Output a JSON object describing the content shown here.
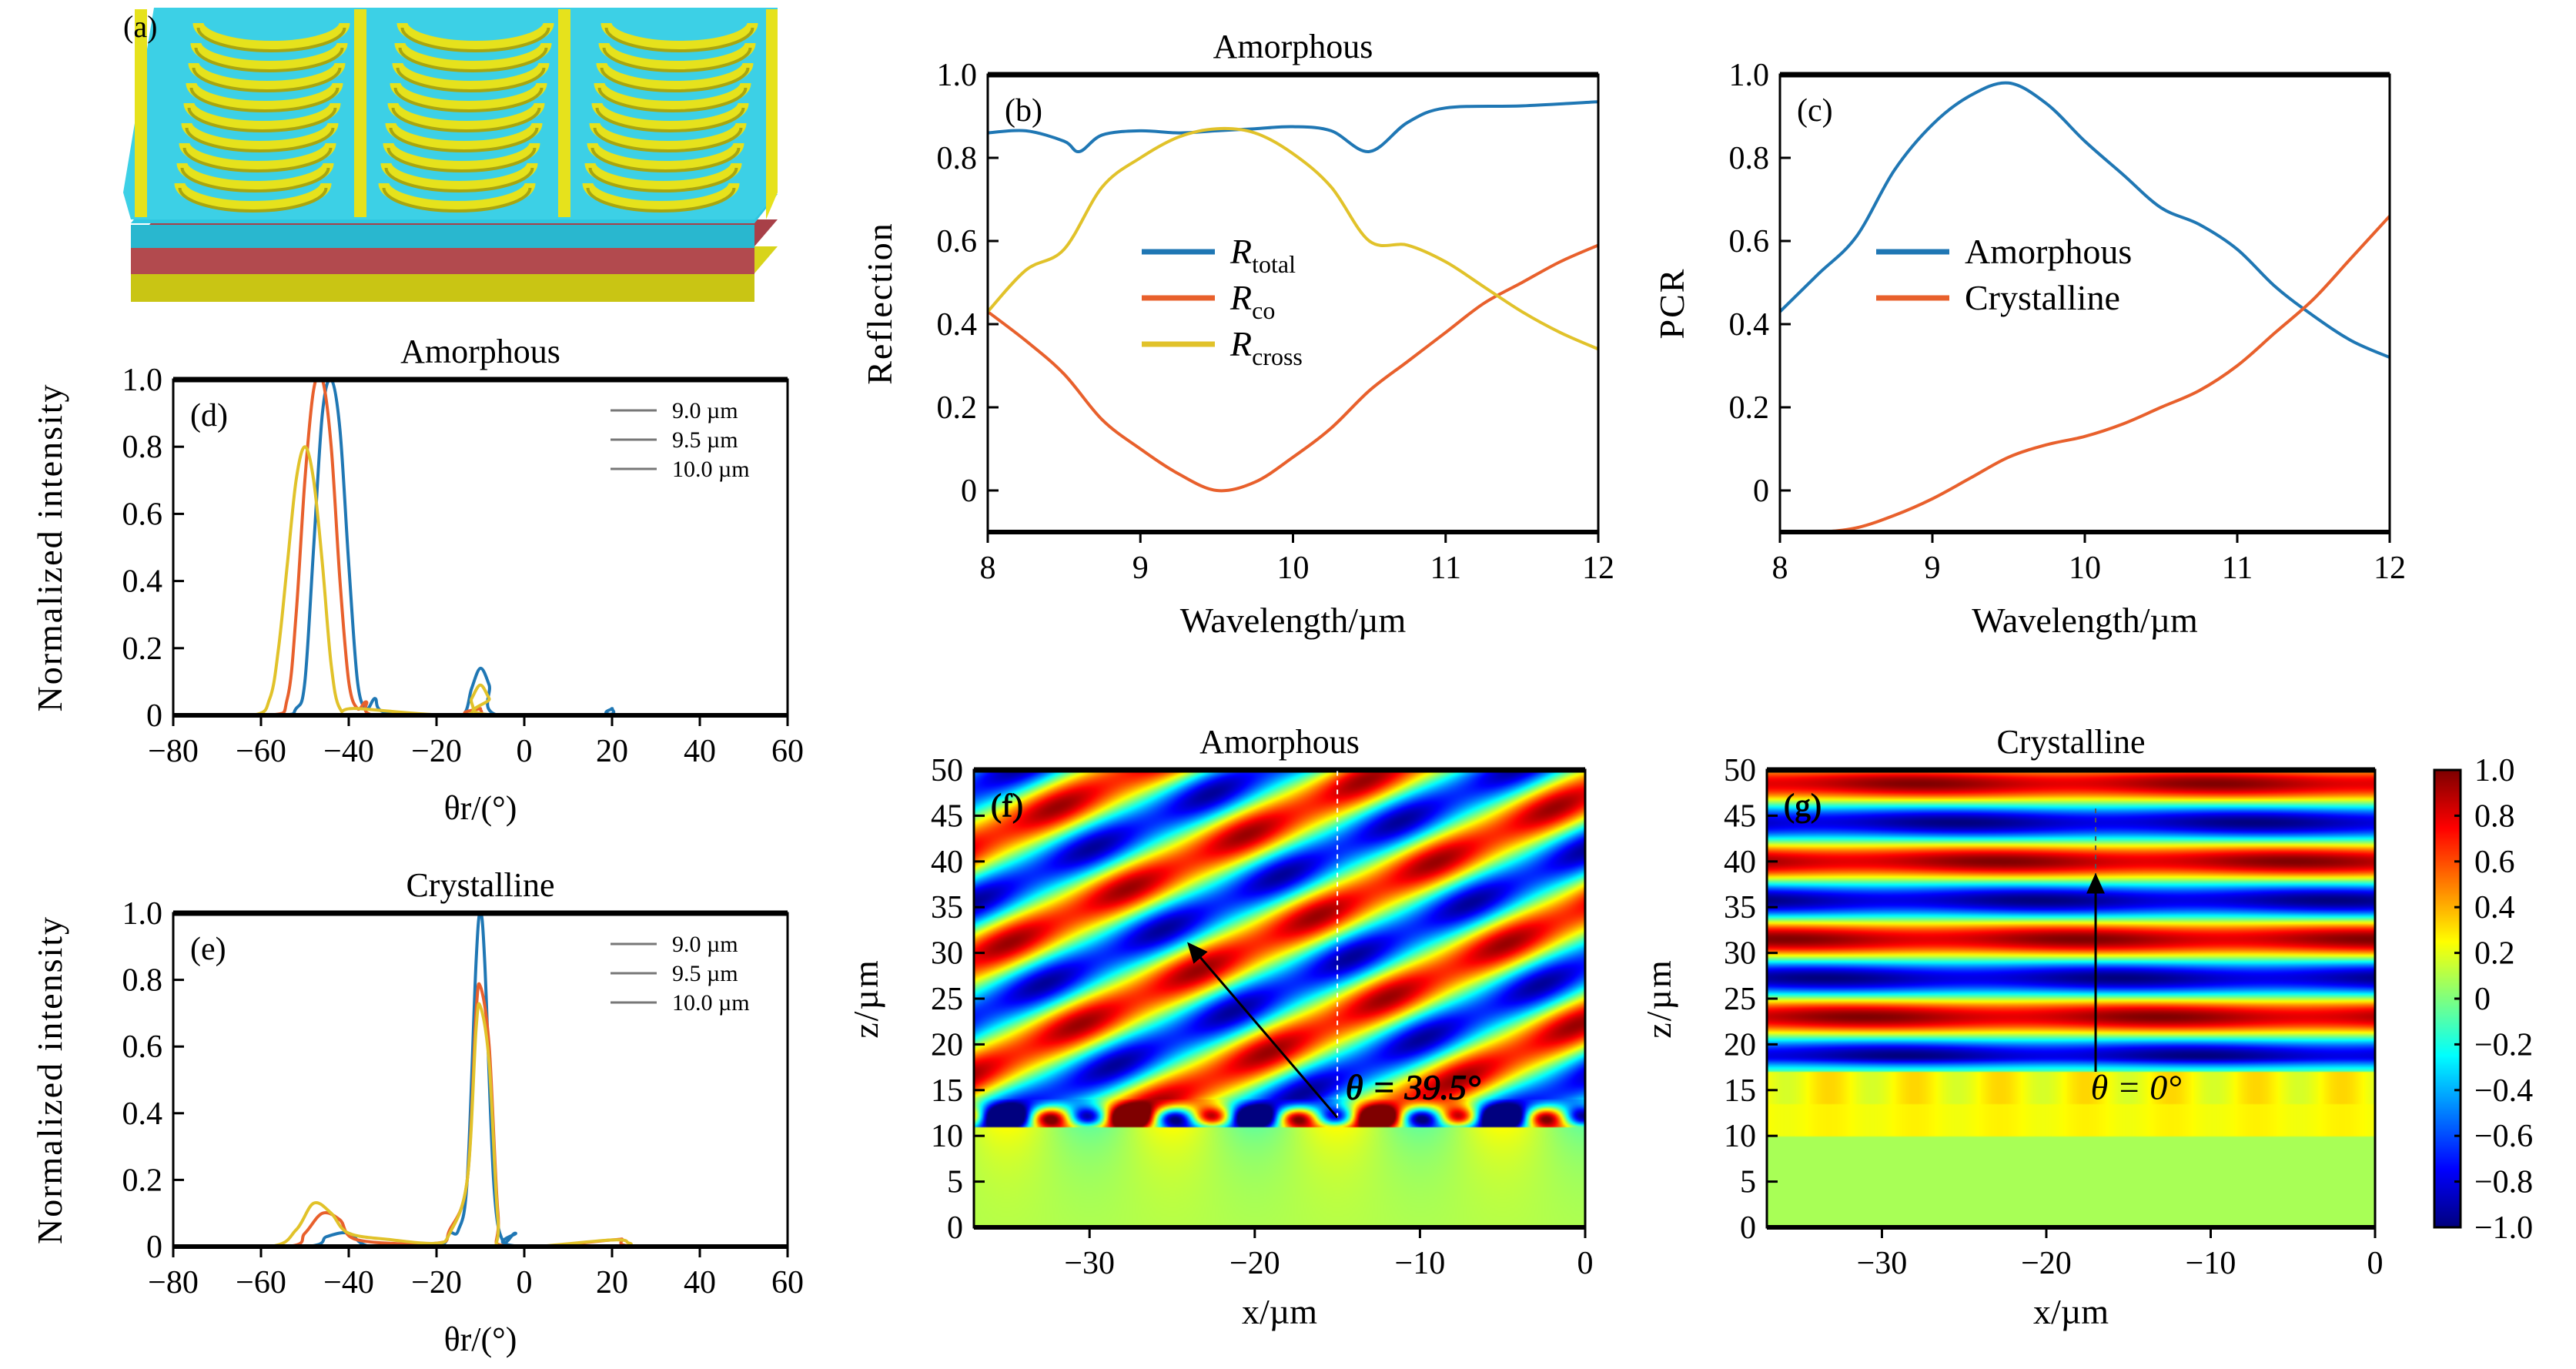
{
  "panel_a": {
    "label": "(a)",
    "colors": {
      "metal": "#e3e01a",
      "dielectric": "#2fc6e0",
      "gst": "#b0404a"
    }
  },
  "chart_data": [
    {
      "id": "b",
      "type": "line",
      "panel_label": "(b)",
      "title": "Amorphous",
      "xlabel": "Wavelength/µm",
      "ylabel": "Reflection",
      "xlim": [
        8,
        12
      ],
      "ylim": [
        -0.1,
        1.0
      ],
      "xticks": [
        8,
        9,
        10,
        11,
        12
      ],
      "xtick_labels": [
        "8",
        "9",
        "10",
        "11",
        "12"
      ],
      "yticks": [
        0,
        0.2,
        0.4,
        0.6,
        0.8,
        1.0
      ],
      "ytick_labels": [
        "0",
        "0.2",
        "0.4",
        "0.6",
        "0.8",
        "1.0"
      ],
      "legend": "center-left",
      "series": [
        {
          "name": "R",
          "sub": "total",
          "color": "#1f77b4",
          "points": [
            [
              8,
              0.86
            ],
            [
              8.25,
              0.865
            ],
            [
              8.5,
              0.84
            ],
            [
              8.6,
              0.815
            ],
            [
              8.75,
              0.855
            ],
            [
              9,
              0.865
            ],
            [
              9.25,
              0.86
            ],
            [
              9.5,
              0.865
            ],
            [
              9.75,
              0.87
            ],
            [
              10,
              0.875
            ],
            [
              10.25,
              0.865
            ],
            [
              10.5,
              0.815
            ],
            [
              10.75,
              0.885
            ],
            [
              11,
              0.92
            ],
            [
              11.5,
              0.925
            ],
            [
              12,
              0.935
            ]
          ]
        },
        {
          "name": "R",
          "sub": "co",
          "color": "#e8602c",
          "points": [
            [
              8,
              0.43
            ],
            [
              8.25,
              0.36
            ],
            [
              8.5,
              0.28
            ],
            [
              8.75,
              0.17
            ],
            [
              9,
              0.1
            ],
            [
              9.25,
              0.04
            ],
            [
              9.5,
              0.0
            ],
            [
              9.75,
              0.02
            ],
            [
              10,
              0.08
            ],
            [
              10.25,
              0.15
            ],
            [
              10.5,
              0.24
            ],
            [
              10.75,
              0.31
            ],
            [
              11,
              0.38
            ],
            [
              11.25,
              0.45
            ],
            [
              11.5,
              0.5
            ],
            [
              11.75,
              0.55
            ],
            [
              12,
              0.59
            ]
          ]
        },
        {
          "name": "R",
          "sub": "cross",
          "color": "#e1c22a",
          "points": [
            [
              8,
              0.43
            ],
            [
              8.25,
              0.53
            ],
            [
              8.5,
              0.58
            ],
            [
              8.75,
              0.73
            ],
            [
              9,
              0.8
            ],
            [
              9.25,
              0.85
            ],
            [
              9.5,
              0.87
            ],
            [
              9.75,
              0.86
            ],
            [
              10,
              0.81
            ],
            [
              10.25,
              0.73
            ],
            [
              10.5,
              0.6
            ],
            [
              10.75,
              0.59
            ],
            [
              11,
              0.55
            ],
            [
              11.25,
              0.49
            ],
            [
              11.5,
              0.43
            ],
            [
              11.75,
              0.38
            ],
            [
              12,
              0.34
            ]
          ]
        }
      ]
    },
    {
      "id": "c",
      "type": "line",
      "panel_label": "(c)",
      "title": "",
      "xlabel": "Wavelength/µm",
      "ylabel": "PCR",
      "xlim": [
        8,
        12
      ],
      "ylim": [
        -0.1,
        1.0
      ],
      "xticks": [
        8,
        9,
        10,
        11,
        12
      ],
      "xtick_labels": [
        "8",
        "9",
        "10",
        "11",
        "12"
      ],
      "yticks": [
        0,
        0.2,
        0.4,
        0.6,
        0.8,
        1.0
      ],
      "ytick_labels": [
        "0",
        "0.2",
        "0.4",
        "0.6",
        "0.8",
        "1.0"
      ],
      "legend": "center-left",
      "series": [
        {
          "name": "Amorphous",
          "color": "#1f77b4",
          "points": [
            [
              8,
              0.43
            ],
            [
              8.25,
              0.52
            ],
            [
              8.5,
              0.61
            ],
            [
              8.75,
              0.77
            ],
            [
              9,
              0.88
            ],
            [
              9.25,
              0.95
            ],
            [
              9.5,
              0.98
            ],
            [
              9.75,
              0.93
            ],
            [
              10,
              0.84
            ],
            [
              10.25,
              0.76
            ],
            [
              10.5,
              0.68
            ],
            [
              10.75,
              0.64
            ],
            [
              11,
              0.58
            ],
            [
              11.25,
              0.49
            ],
            [
              11.5,
              0.42
            ],
            [
              11.75,
              0.36
            ],
            [
              12,
              0.32
            ]
          ]
        },
        {
          "name": "Crystalline",
          "color": "#e8602c",
          "points": [
            [
              8,
              -0.1
            ],
            [
              8.25,
              -0.1
            ],
            [
              8.5,
              -0.09
            ],
            [
              8.75,
              -0.06
            ],
            [
              9,
              -0.02
            ],
            [
              9.25,
              0.03
            ],
            [
              9.5,
              0.08
            ],
            [
              9.75,
              0.11
            ],
            [
              10,
              0.13
            ],
            [
              10.25,
              0.16
            ],
            [
              10.5,
              0.2
            ],
            [
              10.75,
              0.24
            ],
            [
              11,
              0.3
            ],
            [
              11.25,
              0.38
            ],
            [
              11.5,
              0.46
            ],
            [
              11.75,
              0.56
            ],
            [
              12,
              0.66
            ]
          ]
        }
      ]
    },
    {
      "id": "d",
      "type": "line",
      "panel_label": "(d)",
      "title": "Amorphous",
      "xlabel": "θr/(°)",
      "ylabel": "Normalized intensity",
      "xlim": [
        -80,
        60
      ],
      "ylim": [
        0,
        1.0
      ],
      "xticks": [
        -80,
        -60,
        -40,
        -20,
        0,
        20,
        40,
        60
      ],
      "xtick_labels": [
        "−80",
        "−60",
        "−40",
        "−20",
        "0",
        "20",
        "40",
        "60"
      ],
      "yticks": [
        0,
        0.2,
        0.4,
        0.6,
        0.8,
        1.0
      ],
      "ytick_labels": [
        "0",
        "0.2",
        "0.4",
        "0.6",
        "0.8",
        "1.0"
      ],
      "legend": "top-right",
      "series": [
        {
          "name": "9.0 µm",
          "color": "#1f77b4",
          "points": [
            [
              -80,
              0
            ],
            [
              -56,
              0
            ],
            [
              -52,
              0.02
            ],
            [
              -50,
              0.1
            ],
            [
              -48,
              0.5
            ],
            [
              -46,
              0.9
            ],
            [
              -44,
              1.0
            ],
            [
              -42,
              0.85
            ],
            [
              -40,
              0.45
            ],
            [
              -38,
              0.1
            ],
            [
              -36,
              0.02
            ],
            [
              -34,
              0.05
            ],
            [
              -32,
              0.01
            ],
            [
              -20,
              0
            ],
            [
              -14,
              0
            ],
            [
              -12,
              0.08
            ],
            [
              -10,
              0.14
            ],
            [
              -8,
              0.09
            ],
            [
              -6,
              0
            ],
            [
              18,
              0
            ],
            [
              20,
              0.02
            ],
            [
              22,
              0
            ],
            [
              60,
              0
            ]
          ]
        },
        {
          "name": "9.5 µm",
          "color": "#e8602c",
          "points": [
            [
              -80,
              0
            ],
            [
              -58,
              0
            ],
            [
              -54,
              0.05
            ],
            [
              -52,
              0.3
            ],
            [
              -50,
              0.7
            ],
            [
              -48,
              0.97
            ],
            [
              -46,
              1.0
            ],
            [
              -44,
              0.8
            ],
            [
              -42,
              0.4
            ],
            [
              -40,
              0.1
            ],
            [
              -38,
              0.02
            ],
            [
              -36,
              0.04
            ],
            [
              -34,
              0
            ],
            [
              -12,
              0
            ],
            [
              -10,
              0.02
            ],
            [
              -8,
              0
            ],
            [
              60,
              0
            ]
          ]
        },
        {
          "name": "10.0 µm",
          "color": "#e1c22a",
          "points": [
            [
              -80,
              0
            ],
            [
              -62,
              0
            ],
            [
              -58,
              0.05
            ],
            [
              -56,
              0.2
            ],
            [
              -54,
              0.45
            ],
            [
              -52,
              0.7
            ],
            [
              -50,
              0.8
            ],
            [
              -48,
              0.7
            ],
            [
              -46,
              0.45
            ],
            [
              -44,
              0.15
            ],
            [
              -42,
              0.02
            ],
            [
              -38,
              0.02
            ],
            [
              -14,
              0
            ],
            [
              -12,
              0.05
            ],
            [
              -10,
              0.09
            ],
            [
              -8,
              0.05
            ],
            [
              -6,
              0
            ],
            [
              60,
              0
            ]
          ]
        }
      ]
    },
    {
      "id": "e",
      "type": "line",
      "panel_label": "(e)",
      "title": "Crystalline",
      "xlabel": "θr/(°)",
      "ylabel": "Normalized intensity",
      "xlim": [
        -80,
        60
      ],
      "ylim": [
        0,
        1.0
      ],
      "xticks": [
        -80,
        -60,
        -40,
        -20,
        0,
        20,
        40,
        60
      ],
      "xtick_labels": [
        "−80",
        "−60",
        "−40",
        "−20",
        "0",
        "20",
        "40",
        "60"
      ],
      "yticks": [
        0,
        0.2,
        0.4,
        0.6,
        0.8,
        1.0
      ],
      "ytick_labels": [
        "0",
        "0.2",
        "0.4",
        "0.6",
        "0.8",
        "1.0"
      ],
      "legend": "top-right",
      "series": [
        {
          "name": "9.0 µm",
          "color": "#1f77b4",
          "points": [
            [
              -80,
              0
            ],
            [
              -50,
              0
            ],
            [
              -45,
              0.03
            ],
            [
              -40,
              0.04
            ],
            [
              -35,
              0
            ],
            [
              -20,
              0
            ],
            [
              -17,
              0.04
            ],
            [
              -15,
              0.05
            ],
            [
              -13,
              0.2
            ],
            [
              -11,
              0.85
            ],
            [
              -10,
              1.0
            ],
            [
              -9,
              0.85
            ],
            [
              -7,
              0.2
            ],
            [
              -5,
              0.02
            ],
            [
              -2,
              0.04
            ],
            [
              0,
              0
            ],
            [
              60,
              0
            ]
          ]
        },
        {
          "name": "9.5 µm",
          "color": "#e8602c",
          "points": [
            [
              -80,
              0
            ],
            [
              -54,
              0
            ],
            [
              -50,
              0.04
            ],
            [
              -46,
              0.1
            ],
            [
              -42,
              0.08
            ],
            [
              -38,
              0.02
            ],
            [
              -20,
              0.01
            ],
            [
              -17,
              0.05
            ],
            [
              -13,
              0.2
            ],
            [
              -11,
              0.7
            ],
            [
              -10,
              0.78
            ],
            [
              -8,
              0.6
            ],
            [
              -6,
              0.1
            ],
            [
              -4,
              0
            ],
            [
              20,
              0.02
            ],
            [
              22,
              0.02
            ],
            [
              26,
              0
            ],
            [
              60,
              0
            ]
          ]
        },
        {
          "name": "10.0 µm",
          "color": "#e1c22a",
          "points": [
            [
              -80,
              0
            ],
            [
              -58,
              0
            ],
            [
              -52,
              0.05
            ],
            [
              -48,
              0.13
            ],
            [
              -44,
              0.1
            ],
            [
              -40,
              0.04
            ],
            [
              -30,
              0.02
            ],
            [
              -20,
              0.01
            ],
            [
              -17,
              0.04
            ],
            [
              -13,
              0.2
            ],
            [
              -11,
              0.65
            ],
            [
              -10,
              0.72
            ],
            [
              -8,
              0.55
            ],
            [
              -6,
              0.08
            ],
            [
              -4,
              0
            ],
            [
              20,
              0.02
            ],
            [
              24,
              0.01
            ],
            [
              28,
              0
            ],
            [
              60,
              0
            ]
          ]
        }
      ]
    },
    {
      "id": "f",
      "type": "heatmap",
      "panel_label": "(f)",
      "title": "Amorphous",
      "xlabel": "x/µm",
      "ylabel": "z/µm",
      "xlim": [
        -37,
        0
      ],
      "ylim": [
        0,
        50
      ],
      "xticks": [
        -30,
        -20,
        -10,
        0
      ],
      "xtick_labels": [
        "−30",
        "−20",
        "−10",
        "0"
      ],
      "yticks": [
        0,
        5,
        10,
        15,
        20,
        25,
        30,
        35,
        40,
        45,
        50
      ],
      "ytick_labels": [
        "0",
        "5",
        "10",
        "15",
        "20",
        "25",
        "30",
        "35",
        "40",
        "45",
        "50"
      ],
      "colormap": "jet",
      "zlim": [
        -1.0,
        1.0
      ],
      "angle_deg": 39.5,
      "annotation": "θ = 39.5°"
    },
    {
      "id": "g",
      "type": "heatmap",
      "panel_label": "(g)",
      "title": "Crystalline",
      "xlabel": "x/µm",
      "ylabel": "z/µm",
      "xlim": [
        -37,
        0
      ],
      "ylim": [
        0,
        50
      ],
      "xticks": [
        -30,
        -20,
        -10,
        0
      ],
      "xtick_labels": [
        "−30",
        "−20",
        "−10",
        "0"
      ],
      "yticks": [
        0,
        5,
        10,
        15,
        20,
        25,
        30,
        35,
        40,
        45,
        50
      ],
      "ytick_labels": [
        "0",
        "5",
        "10",
        "15",
        "20",
        "25",
        "30",
        "35",
        "40",
        "45",
        "50"
      ],
      "colormap": "jet",
      "zlim": [
        -1.0,
        1.0
      ],
      "angle_deg": 0,
      "annotation": "θ = 0°"
    }
  ],
  "colorbar": {
    "colormap": "jet",
    "range": [
      -1.0,
      1.0
    ],
    "ticks": [
      1.0,
      0.8,
      0.6,
      0.4,
      0.2,
      0,
      -0.2,
      -0.4,
      -0.6,
      -0.8,
      -1.0
    ],
    "tick_labels": [
      "1.0",
      "0.8",
      "0.6",
      "0.4",
      "0.2",
      "0",
      "−0.2",
      "−0.4",
      "−0.6",
      "−0.8",
      "−1.0"
    ]
  }
}
